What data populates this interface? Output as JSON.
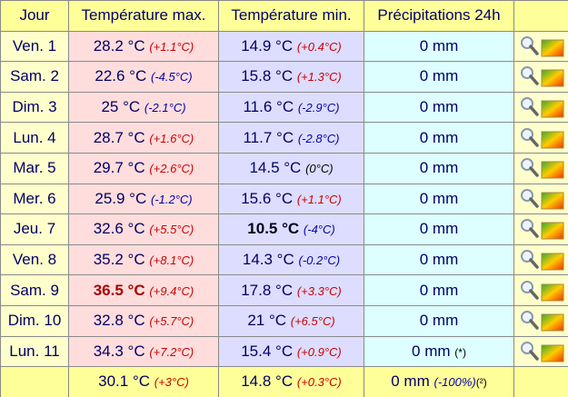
{
  "header": {
    "columns": [
      "Jour",
      "Température max.",
      "Température min.",
      "Précipitations 24h"
    ]
  },
  "table": {
    "rows": [
      {
        "day": "Ven. 1",
        "tmax": "28.2 °C",
        "tmax_dev": "(+1.1°C)",
        "tmin": "14.9 °C",
        "tmin_dev": "(+0.4°C)",
        "precip": "0 mm"
      },
      {
        "day": "Sam. 2",
        "tmax": "22.6 °C",
        "tmax_dev": "(-4.5°C)",
        "tmin": "15.8 °C",
        "tmin_dev": "(+1.3°C)",
        "precip": "0 mm"
      },
      {
        "day": "Dim. 3",
        "tmax": "25 °C",
        "tmax_dev": "(-2.1°C)",
        "tmin": "11.6 °C",
        "tmin_dev": "(-2.9°C)",
        "precip": "0 mm"
      },
      {
        "day": "Lun. 4",
        "tmax": "28.7 °C",
        "tmax_dev": "(+1.6°C)",
        "tmin": "11.7 °C",
        "tmin_dev": "(-2.8°C)",
        "precip": "0 mm"
      },
      {
        "day": "Mar. 5",
        "tmax": "29.7 °C",
        "tmax_dev": "(+2.6°C)",
        "tmin": "14.5 °C",
        "tmin_dev": "(0°C)",
        "precip": "0 mm"
      },
      {
        "day": "Mer. 6",
        "tmax": "25.9 °C",
        "tmax_dev": "(-1.2°C)",
        "tmin": "15.6 °C",
        "tmin_dev": "(+1.1°C)",
        "precip": "0 mm"
      },
      {
        "day": "Jeu. 7",
        "tmax": "32.6 °C",
        "tmax_dev": "(+5.5°C)",
        "tmin": "10.5 °C",
        "tmin_dev": "(-4°C)",
        "precip": "0 mm",
        "bold": "tmin"
      },
      {
        "day": "Ven. 8",
        "tmax": "35.2 °C",
        "tmax_dev": "(+8.1°C)",
        "tmin": "14.3 °C",
        "tmin_dev": "(-0.2°C)",
        "precip": "0 mm"
      },
      {
        "day": "Sam. 9",
        "tmax": "36.5 °C",
        "tmax_dev": "(+9.4°C)",
        "tmin": "17.8 °C",
        "tmin_dev": "(+3.3°C)",
        "precip": "0 mm",
        "bold": "tmax"
      },
      {
        "day": "Dim. 10",
        "tmax": "32.8 °C",
        "tmax_dev": "(+5.7°C)",
        "tmin": "21 °C",
        "tmin_dev": "(+6.5°C)",
        "precip": "0 mm"
      },
      {
        "day": "Lun. 11",
        "tmax": "34.3 °C",
        "tmax_dev": "(+7.2°C)",
        "tmin": "15.4 °C",
        "tmin_dev": "(+0.9°C)",
        "precip": "0 mm",
        "note": "(*)"
      }
    ],
    "summary": {
      "tmax": "30.1 °C",
      "tmax_dev": "(+3°C)",
      "tmin": "14.8 °C",
      "tmin_dev": "(+0.3°C)",
      "precip": "0 mm",
      "precip_dev": "(-100%)",
      "note": "(²)"
    }
  }
}
